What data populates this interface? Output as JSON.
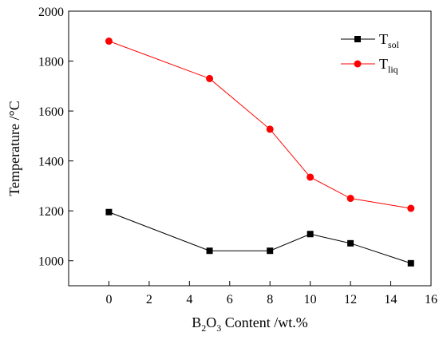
{
  "chart_data": {
    "type": "line",
    "xlabel": {
      "base": "B",
      "sub1": "2",
      "mid": "O",
      "sub2": "3",
      "rest": " Content /wt.%"
    },
    "ylabel": "Temperature /°C",
    "xlim": [
      -2,
      16
    ],
    "ylim": [
      900,
      2000
    ],
    "xticks": [
      0,
      2,
      4,
      6,
      8,
      10,
      12,
      14,
      16
    ],
    "yticks": [
      1000,
      1200,
      1400,
      1600,
      1800,
      2000
    ],
    "grid": false,
    "legend_position": "top-right",
    "series": [
      {
        "name": "T",
        "name_sub": "sol",
        "color": "#000000",
        "marker": "square",
        "x": [
          0,
          5,
          8,
          10,
          12,
          15
        ],
        "y": [
          1195,
          1040,
          1040,
          1107,
          1070,
          990
        ]
      },
      {
        "name": "T",
        "name_sub": "liq",
        "color": "#ff0000",
        "marker": "circle",
        "x": [
          0,
          5,
          8,
          10,
          12,
          15
        ],
        "y": [
          1880,
          1730,
          1527,
          1335,
          1250,
          1210
        ]
      }
    ]
  }
}
